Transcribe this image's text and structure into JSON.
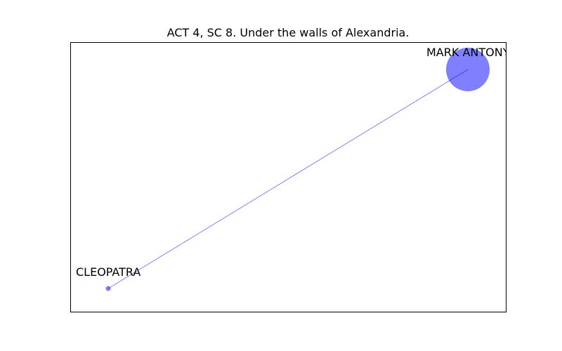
{
  "title": "ACT 4, SC 8. Under the walls of Alexandria.",
  "colors": {
    "node": "#0000ff",
    "edge": "#0000ff",
    "frame": "#000000",
    "background": "#ffffff"
  },
  "nodes": [
    {
      "id": "mark-antony",
      "label": "MARK ANTONY",
      "size": "large"
    },
    {
      "id": "cleopatra",
      "label": "CLEOPATRA",
      "size": "small"
    }
  ],
  "edges": [
    {
      "from": "mark-antony",
      "to": "cleopatra"
    }
  ]
}
